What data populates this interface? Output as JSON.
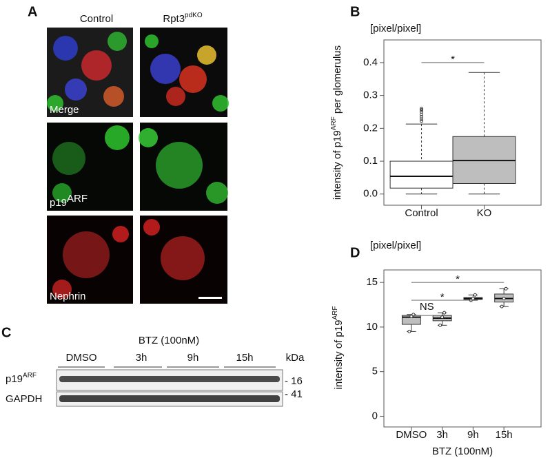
{
  "panels": [
    "A",
    "B",
    "C",
    "D"
  ],
  "micrographs": {
    "columns": [
      {
        "text": "Control"
      },
      {
        "text": "Rpt3",
        "sup": "pdKO"
      }
    ],
    "rows": [
      {
        "text": "Merge"
      },
      {
        "text": "p19",
        "sup": "ARF"
      },
      {
        "text": "Nephrin"
      }
    ]
  },
  "blot": {
    "treatment": "BTZ (100nM)",
    "lanes": [
      "DMSO",
      "3h",
      "9h",
      "15h"
    ],
    "unit": "kDa",
    "bands": [
      {
        "text": "p19",
        "sup": "ARF",
        "marker": "- 16"
      },
      {
        "text": "GAPDH",
        "marker": "- 41"
      }
    ]
  },
  "chart_data": [
    {
      "type": "box",
      "unit_label": "[pixel/pixel]",
      "y_label": {
        "pre": "intensity of p19",
        "sup": "ARF",
        "post": " per glomerulus"
      },
      "categories": [
        "Control",
        "KO"
      ],
      "color": "#ffffff",
      "boxes": [
        {
          "min": 0,
          "q1": 0.018,
          "median": 0.054,
          "q3": 0.1,
          "max": 0.213,
          "outliers": [
            0.222,
            0.228,
            0.235,
            0.242,
            0.25,
            0.256,
            0.26
          ]
        },
        {
          "min": 0,
          "q1": 0.032,
          "median": 0.102,
          "q3": 0.175,
          "max": 0.37,
          "color": "#bebebe"
        }
      ],
      "ylim": [
        -0.034,
        0.469
      ],
      "yticks": [
        {
          "value": 0,
          "label": "0.0"
        },
        0.1,
        0.2,
        0.3,
        0.4
      ],
      "significance": [
        {
          "from": 0,
          "to": 1,
          "y": 0.4,
          "label": "*"
        }
      ]
    },
    {
      "type": "box",
      "unit_label": "[pixel/pixel]",
      "y_label": {
        "pre": "intensity of p19",
        "sup": "ARF",
        "post": ""
      },
      "x_label": "BTZ (100nM)",
      "categories": [
        "DMSO",
        "3h",
        "9h",
        "15h"
      ],
      "color": "#bebebe",
      "boxes": [
        {
          "min": 9.5,
          "q1": 10.3,
          "median": 11.1,
          "q3": 11.3,
          "max": 11.4,
          "points": [
            9.5,
            11.2,
            11.4
          ]
        },
        {
          "min": 10.2,
          "q1": 10.7,
          "median": 11.0,
          "q3": 11.3,
          "max": 11.6,
          "points": [
            10.2,
            11.1,
            11.6
          ]
        },
        {
          "min": 13.0,
          "q1": 13.1,
          "median": 13.2,
          "q3": 13.3,
          "max": 13.6,
          "points": [
            13.0,
            13.2,
            13.6
          ]
        },
        {
          "min": 12.3,
          "q1": 12.8,
          "median": 13.2,
          "q3": 13.7,
          "max": 14.3,
          "points": [
            12.3,
            13.2,
            14.3
          ]
        }
      ],
      "ylim": [
        -1.2,
        16.4
      ],
      "yticks": [
        0,
        5,
        10,
        15
      ],
      "significance": [
        {
          "from": 0,
          "to": 1,
          "y": 11.3,
          "label": "NS"
        },
        {
          "from": 0,
          "to": 2,
          "y": 13.0,
          "label": "*"
        },
        {
          "from": 0,
          "to": 3,
          "y": 15.0,
          "label": "*"
        }
      ]
    }
  ]
}
